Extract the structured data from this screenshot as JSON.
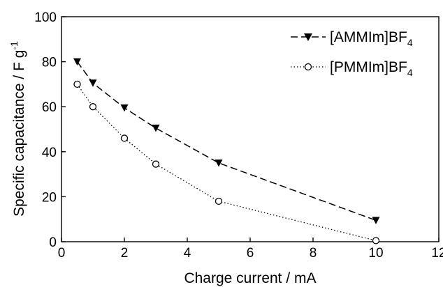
{
  "chart_data": {
    "type": "line",
    "xlabel": "Charge current / mA",
    "ylabel": "Specific capacitance / F g",
    "ylabel_superscript": "-1",
    "xlim": [
      0,
      12
    ],
    "ylim": [
      0,
      100
    ],
    "xticks": [
      "0",
      "2",
      "4",
      "6",
      "8",
      "10",
      "12"
    ],
    "yticks": [
      "0",
      "20",
      "40",
      "60",
      "80",
      "100"
    ],
    "grid": false,
    "legend_position": "top-right",
    "series": [
      {
        "name": "[AMMIm]BF",
        "name_subscript": "4",
        "marker": "filled-down-triangle",
        "line_style": "dashed",
        "color": "#000000",
        "x": [
          0.5,
          1,
          2,
          3,
          5,
          10
        ],
        "y": [
          80,
          70.5,
          59.5,
          50.5,
          35,
          9.5
        ]
      },
      {
        "name": "[PMMIm]BF",
        "name_subscript": "4",
        "marker": "open-circle",
        "line_style": "dotted",
        "color": "#000000",
        "x": [
          0.5,
          1,
          2,
          3,
          5,
          10
        ],
        "y": [
          70,
          60,
          46,
          34.5,
          18,
          0.5
        ]
      }
    ]
  }
}
